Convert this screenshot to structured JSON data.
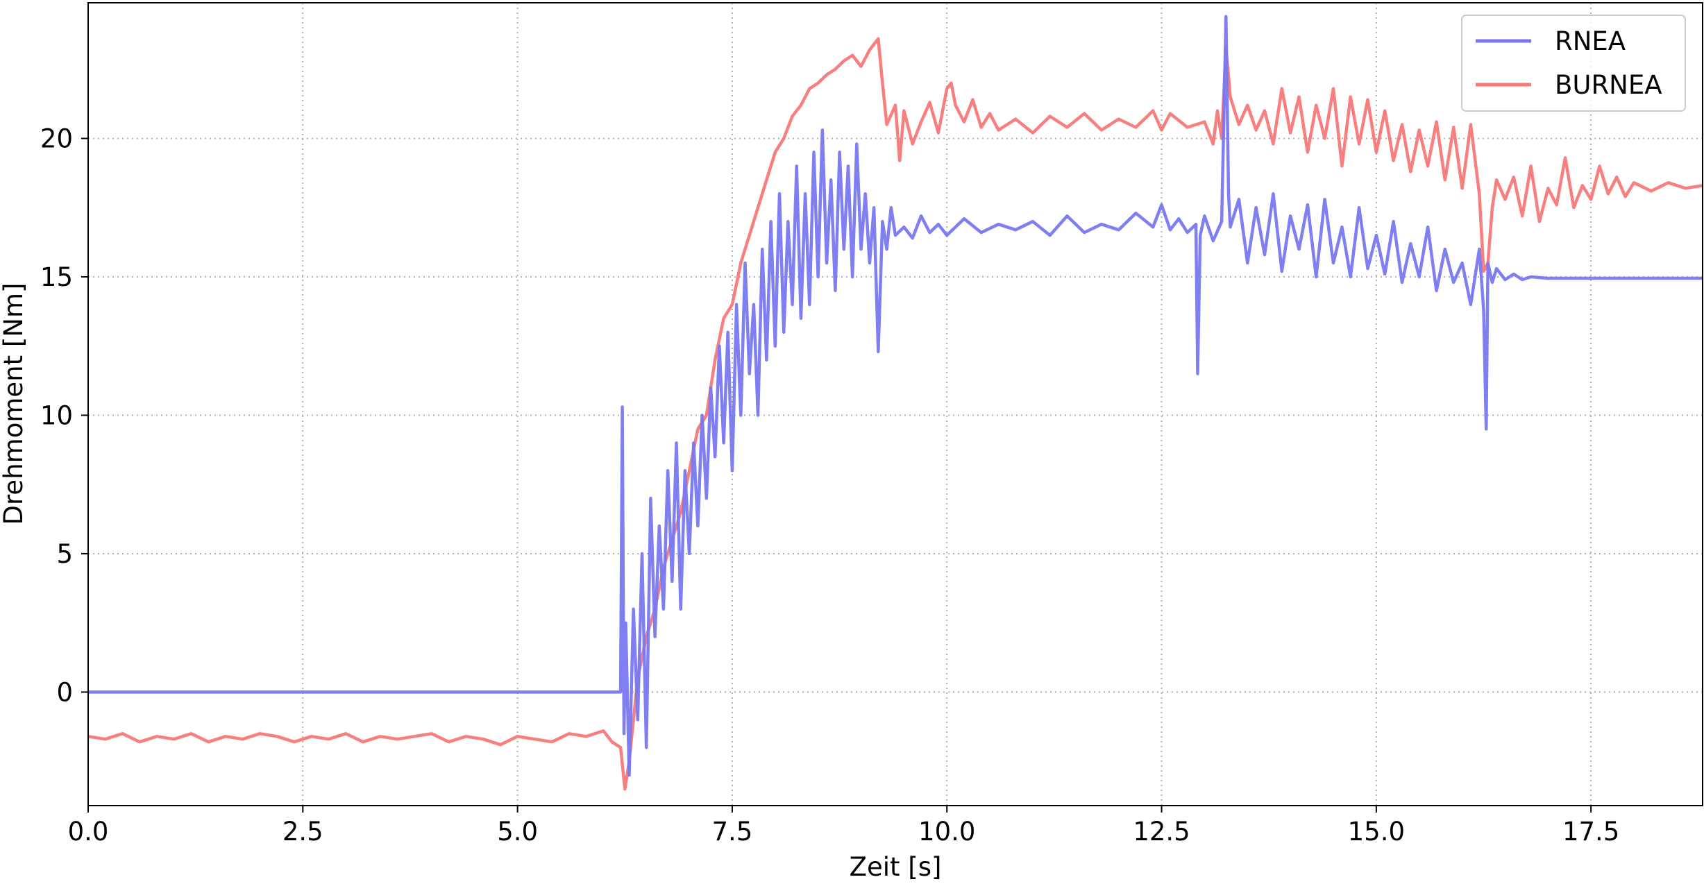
{
  "chart_data": {
    "type": "line",
    "title": "",
    "xlabel": "Zeit [s]",
    "ylabel": "Drehmoment [Nm]",
    "xlim": [
      0,
      18.8
    ],
    "ylim": [
      -4.1,
      24.9
    ],
    "xticks": [
      0.0,
      2.5,
      5.0,
      7.5,
      10.0,
      12.5,
      15.0,
      17.5
    ],
    "xtick_labels": [
      "0.0",
      "2.5",
      "5.0",
      "7.5",
      "10.0",
      "12.5",
      "15.0",
      "17.5"
    ],
    "yticks": [
      0,
      5,
      10,
      15,
      20
    ],
    "ytick_labels": [
      "0",
      "5",
      "10",
      "15",
      "20"
    ],
    "grid": true,
    "grid_style": "dotted",
    "legend_position": "top-right",
    "series": [
      {
        "name": "RNEA",
        "color": "#7878f0",
        "x": [
          0,
          6.2,
          6.22,
          6.24,
          6.26,
          6.3,
          6.35,
          6.4,
          6.45,
          6.5,
          6.55,
          6.6,
          6.65,
          6.7,
          6.75,
          6.8,
          6.85,
          6.9,
          6.95,
          7.0,
          7.05,
          7.1,
          7.15,
          7.2,
          7.25,
          7.3,
          7.35,
          7.4,
          7.45,
          7.5,
          7.55,
          7.6,
          7.65,
          7.7,
          7.75,
          7.8,
          7.85,
          7.9,
          7.95,
          8.0,
          8.05,
          8.1,
          8.15,
          8.2,
          8.25,
          8.3,
          8.35,
          8.4,
          8.45,
          8.5,
          8.55,
          8.6,
          8.65,
          8.7,
          8.75,
          8.8,
          8.85,
          8.9,
          8.95,
          9.0,
          9.05,
          9.1,
          9.15,
          9.2,
          9.25,
          9.3,
          9.35,
          9.4,
          9.5,
          9.6,
          9.7,
          9.8,
          9.9,
          10.0,
          10.2,
          10.4,
          10.6,
          10.8,
          11.0,
          11.2,
          11.4,
          11.6,
          11.8,
          12.0,
          12.2,
          12.4,
          12.5,
          12.6,
          12.7,
          12.8,
          12.9,
          12.92,
          12.95,
          13.0,
          13.1,
          13.2,
          13.25,
          13.28,
          13.3,
          13.4,
          13.5,
          13.6,
          13.7,
          13.8,
          13.9,
          14.0,
          14.1,
          14.2,
          14.3,
          14.4,
          14.5,
          14.6,
          14.7,
          14.8,
          14.9,
          15.0,
          15.1,
          15.2,
          15.3,
          15.4,
          15.5,
          15.6,
          15.7,
          15.8,
          15.9,
          16.0,
          16.1,
          16.2,
          16.25,
          16.28,
          16.3,
          16.35,
          16.4,
          16.5,
          16.6,
          16.7,
          16.8,
          17.0,
          17.5,
          18.0,
          18.8
        ],
        "y": [
          0,
          0,
          10.3,
          -1.5,
          2.5,
          -3.0,
          3.0,
          -1.0,
          5.0,
          -2.0,
          7.0,
          2.0,
          6.0,
          3.0,
          8.0,
          4.0,
          9.0,
          3.0,
          8.0,
          5.0,
          9.0,
          6.0,
          10.0,
          7.0,
          11.0,
          8.5,
          12.5,
          9.0,
          13.0,
          8.0,
          14.0,
          10.0,
          15.5,
          11.5,
          14.0,
          10.0,
          16.0,
          12.0,
          17.0,
          12.5,
          18.0,
          13.0,
          17.0,
          14.0,
          19.0,
          13.5,
          18.0,
          14.0,
          19.5,
          15.0,
          20.3,
          15.5,
          18.5,
          14.5,
          19.5,
          16.0,
          19.0,
          15.0,
          19.8,
          16.0,
          18.0,
          15.5,
          17.5,
          12.3,
          17.0,
          16.0,
          17.5,
          16.5,
          16.8,
          16.4,
          17.2,
          16.6,
          16.9,
          16.5,
          17.1,
          16.6,
          16.9,
          16.7,
          17.0,
          16.5,
          17.2,
          16.6,
          16.9,
          16.7,
          17.3,
          16.8,
          17.6,
          16.7,
          17.1,
          16.6,
          16.9,
          11.5,
          16.5,
          17.2,
          16.3,
          17.0,
          24.4,
          18.0,
          16.8,
          17.8,
          15.5,
          17.5,
          15.8,
          18.0,
          15.2,
          17.2,
          16.0,
          17.6,
          15.0,
          17.8,
          15.5,
          16.8,
          15.0,
          17.5,
          15.3,
          16.5,
          15.1,
          17.0,
          14.8,
          16.2,
          15.0,
          16.8,
          14.5,
          16.0,
          14.8,
          15.5,
          14.0,
          16.0,
          13.8,
          9.5,
          15.5,
          14.8,
          15.3,
          14.9,
          15.1,
          14.9,
          15.0,
          14.95,
          14.95,
          14.95,
          14.95
        ]
      },
      {
        "name": "BURNEA",
        "color": "#f87878",
        "x": [
          0,
          0.2,
          0.4,
          0.6,
          0.8,
          1.0,
          1.2,
          1.4,
          1.6,
          1.8,
          2.0,
          2.2,
          2.4,
          2.6,
          2.8,
          3.0,
          3.2,
          3.4,
          3.6,
          3.8,
          4.0,
          4.2,
          4.4,
          4.6,
          4.8,
          5.0,
          5.2,
          5.4,
          5.6,
          5.8,
          6.0,
          6.1,
          6.2,
          6.25,
          6.3,
          6.35,
          6.4,
          6.5,
          6.6,
          6.7,
          6.8,
          6.9,
          7.0,
          7.1,
          7.2,
          7.3,
          7.4,
          7.5,
          7.6,
          7.7,
          7.8,
          7.9,
          8.0,
          8.1,
          8.2,
          8.3,
          8.4,
          8.5,
          8.6,
          8.7,
          8.8,
          8.9,
          9.0,
          9.1,
          9.2,
          9.25,
          9.3,
          9.4,
          9.45,
          9.5,
          9.6,
          9.7,
          9.8,
          9.9,
          10.0,
          10.05,
          10.1,
          10.2,
          10.3,
          10.4,
          10.5,
          10.6,
          10.8,
          11.0,
          11.2,
          11.4,
          11.6,
          11.8,
          12.0,
          12.2,
          12.4,
          12.5,
          12.6,
          12.8,
          13.0,
          13.1,
          13.15,
          13.2,
          13.25,
          13.3,
          13.4,
          13.5,
          13.6,
          13.7,
          13.8,
          13.9,
          14.0,
          14.1,
          14.2,
          14.3,
          14.4,
          14.5,
          14.6,
          14.7,
          14.8,
          14.9,
          15.0,
          15.1,
          15.2,
          15.3,
          15.4,
          15.5,
          15.6,
          15.7,
          15.8,
          15.9,
          16.0,
          16.1,
          16.2,
          16.25,
          16.3,
          16.35,
          16.4,
          16.5,
          16.6,
          16.7,
          16.8,
          16.9,
          17.0,
          17.1,
          17.2,
          17.3,
          17.4,
          17.5,
          17.6,
          17.7,
          17.8,
          17.9,
          18.0,
          18.2,
          18.4,
          18.6,
          18.8
        ],
        "y": [
          -1.6,
          -1.7,
          -1.5,
          -1.8,
          -1.6,
          -1.7,
          -1.5,
          -1.8,
          -1.6,
          -1.7,
          -1.5,
          -1.6,
          -1.8,
          -1.6,
          -1.7,
          -1.5,
          -1.8,
          -1.6,
          -1.7,
          -1.6,
          -1.5,
          -1.8,
          -1.6,
          -1.7,
          -1.9,
          -1.6,
          -1.7,
          -1.8,
          -1.5,
          -1.6,
          -1.4,
          -1.8,
          -2.0,
          -3.5,
          -2.5,
          -1.0,
          0.5,
          2.0,
          3.0,
          4.5,
          5.5,
          6.5,
          8.0,
          9.5,
          10.0,
          12.0,
          13.5,
          14.0,
          15.5,
          16.5,
          17.5,
          18.5,
          19.5,
          20.0,
          20.8,
          21.2,
          21.8,
          22.0,
          22.3,
          22.5,
          22.8,
          23.0,
          22.6,
          23.2,
          23.6,
          22.0,
          20.5,
          21.2,
          19.2,
          21.0,
          19.8,
          20.6,
          21.3,
          20.2,
          21.8,
          22.0,
          21.2,
          20.6,
          21.4,
          20.4,
          20.9,
          20.3,
          20.7,
          20.2,
          20.8,
          20.4,
          20.9,
          20.3,
          20.7,
          20.4,
          21.0,
          20.3,
          20.9,
          20.4,
          20.6,
          19.8,
          21.0,
          20.0,
          23.3,
          21.5,
          20.5,
          21.2,
          20.3,
          21.0,
          19.8,
          21.8,
          20.2,
          21.5,
          19.5,
          21.2,
          20.0,
          21.8,
          19.0,
          21.5,
          19.8,
          21.4,
          19.5,
          21.0,
          19.2,
          20.5,
          18.8,
          20.3,
          19.0,
          20.6,
          18.5,
          20.4,
          18.2,
          20.5,
          18.0,
          15.2,
          15.5,
          17.5,
          18.5,
          17.8,
          18.6,
          17.2,
          19.0,
          17.0,
          18.2,
          17.6,
          19.3,
          17.5,
          18.3,
          17.8,
          19.0,
          18.0,
          18.6,
          17.9,
          18.4,
          18.1,
          18.4,
          18.2,
          18.3
        ]
      }
    ]
  }
}
